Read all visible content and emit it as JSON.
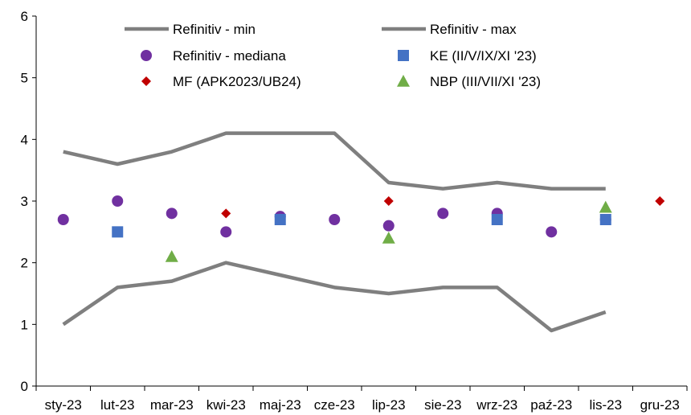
{
  "chart_data": {
    "type": "line",
    "categories": [
      "sty-23",
      "lut-23",
      "mar-23",
      "kwi-23",
      "maj-23",
      "cze-23",
      "lip-23",
      "sie-23",
      "wrz-23",
      "paź-23",
      "lis-23",
      "gru-23"
    ],
    "ylim": [
      0,
      6
    ],
    "yticks": [
      "0",
      "1",
      "2",
      "3",
      "4",
      "5",
      "6"
    ],
    "grid": false,
    "legend_position": "top",
    "series": [
      {
        "name": "Refinitiv - min",
        "kind": "line",
        "color": "#7f7f7f",
        "values": [
          1.0,
          1.6,
          1.7,
          2.0,
          1.8,
          1.6,
          1.5,
          1.6,
          1.6,
          0.9,
          1.2,
          null
        ]
      },
      {
        "name": "Refinitiv - max",
        "kind": "line",
        "color": "#7f7f7f",
        "values": [
          3.8,
          3.6,
          3.8,
          4.1,
          4.1,
          4.1,
          3.3,
          3.2,
          3.3,
          3.2,
          3.2,
          null
        ]
      },
      {
        "name": "Refinitiv - mediana",
        "kind": "marker",
        "marker": "circle",
        "color": "#7030a0",
        "values": [
          2.7,
          3.0,
          2.8,
          2.5,
          2.75,
          2.7,
          2.6,
          2.8,
          2.8,
          2.5,
          2.7,
          null
        ]
      },
      {
        "name": "KE (II/V/IX/XI '23)",
        "kind": "marker",
        "marker": "square",
        "color": "#4472c4",
        "values": [
          null,
          2.5,
          null,
          null,
          2.7,
          null,
          null,
          null,
          2.7,
          null,
          2.7,
          null
        ]
      },
      {
        "name": "MF (APK2023/UB24)",
        "kind": "marker",
        "marker": "diamond",
        "color": "#c00000",
        "values": [
          null,
          null,
          null,
          2.8,
          null,
          null,
          3.0,
          null,
          null,
          null,
          null,
          3.0
        ]
      },
      {
        "name": "NBP (III/VII/XI '23)",
        "kind": "marker",
        "marker": "triangle",
        "color": "#70ad47",
        "values": [
          null,
          null,
          2.1,
          null,
          null,
          null,
          2.4,
          null,
          null,
          null,
          2.9,
          null
        ]
      }
    ]
  }
}
